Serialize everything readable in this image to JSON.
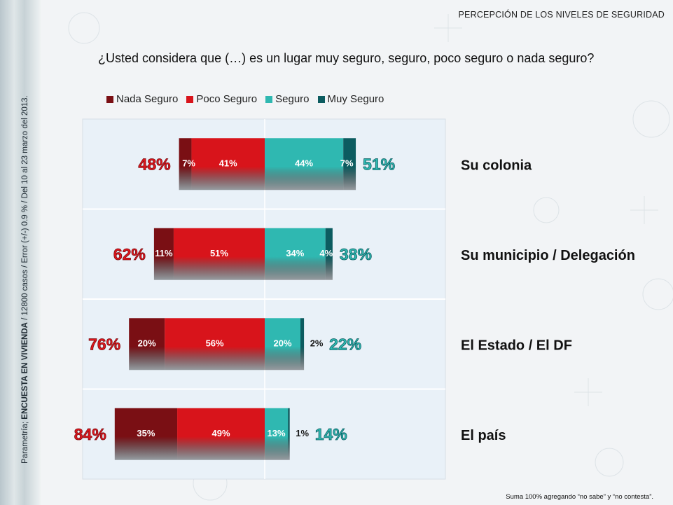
{
  "header": {
    "title": "PERCEPCIÓN DE LOS NIVELES DE SEGURIDAD"
  },
  "question": "¿Usted considera que (…) es un lugar muy seguro, seguro, poco seguro o nada seguro?",
  "side_note": {
    "prefix": "Parametría;",
    "bold": "ENCUESTA EN VIVIENDA",
    "suffix": " / 12800 casos / Error (+/-) 0.9 % / Del 10 al 23 marzo del 2013."
  },
  "footer_note": "Suma 100%  agregando “no sabe” y “no contesta”.",
  "colors": {
    "nada_seguro": "#7a0f14",
    "poco_seguro": "#d8141b",
    "seguro": "#2fb8b1",
    "muy_seguro": "#0c5c60",
    "negative_total": "#e0161c",
    "positive_total": "#2fb8b1"
  },
  "chart_data": {
    "type": "bar",
    "orientation": "horizontal",
    "stacked": "diverging",
    "categories": [
      "Su colonia",
      "Su municipio / Delegación",
      "El Estado / El DF",
      "El país"
    ],
    "series": [
      {
        "name": "Nada Seguro",
        "values": [
          7,
          11,
          20,
          35
        ],
        "labels": [
          "7%",
          "11%",
          "20%",
          "35%"
        ],
        "side": "negative"
      },
      {
        "name": "Poco Seguro",
        "values": [
          41,
          51,
          56,
          49
        ],
        "labels": [
          "41%",
          "51%",
          "56%",
          "49%"
        ],
        "side": "negative"
      },
      {
        "name": "Seguro",
        "values": [
          44,
          34,
          20,
          13
        ],
        "labels": [
          "44%",
          "34%",
          "20%",
          "13%"
        ],
        "side": "positive"
      },
      {
        "name": "Muy Seguro",
        "values": [
          7,
          4,
          2,
          1
        ],
        "labels": [
          "7%",
          "4%",
          "2%",
          "1%"
        ],
        "side": "positive"
      }
    ],
    "negative_totals": [
      "48%",
      "62%",
      "76%",
      "84%"
    ],
    "positive_totals": [
      "51%",
      "38%",
      "22%",
      "14%"
    ],
    "legend_position": "top"
  }
}
